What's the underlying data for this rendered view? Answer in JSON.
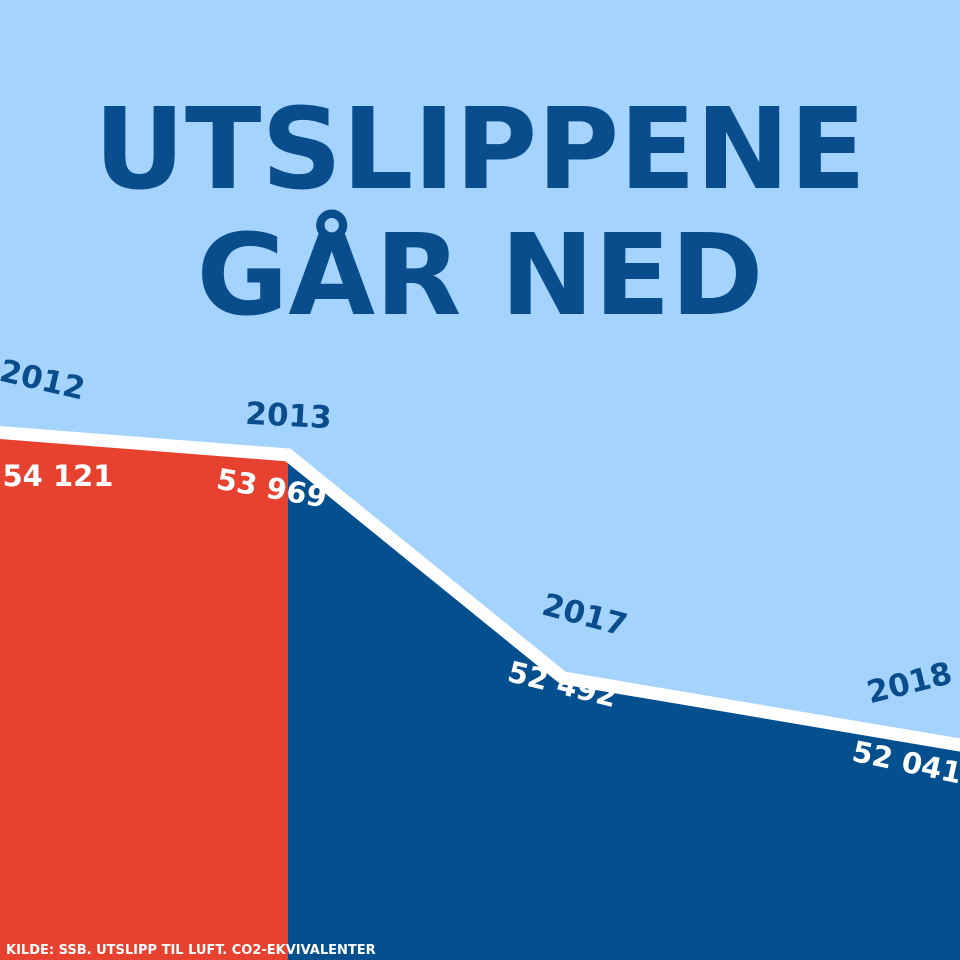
{
  "title": {
    "line1": "UTSLIPPENE",
    "line2": "GÅR NED"
  },
  "source": "KILDE: SSB. UTSLIPP TIL LUFT. CO2-EKVIVALENTER",
  "colors": {
    "background": "#a4d4fd",
    "title": "#0a4d8c",
    "area_before": "#e74230",
    "area_after": "#044f8e",
    "line": "#ffffff"
  },
  "chart_data": {
    "type": "area",
    "x": [
      "2012",
      "2013",
      "2017",
      "2018"
    ],
    "series": [
      {
        "values": [
          54121,
          53969,
          52492,
          52041
        ],
        "labels": [
          "54 121",
          "53 969",
          "52 492",
          "52 041"
        ]
      }
    ],
    "xlabel": "",
    "ylabel": "",
    "grid": false
  }
}
